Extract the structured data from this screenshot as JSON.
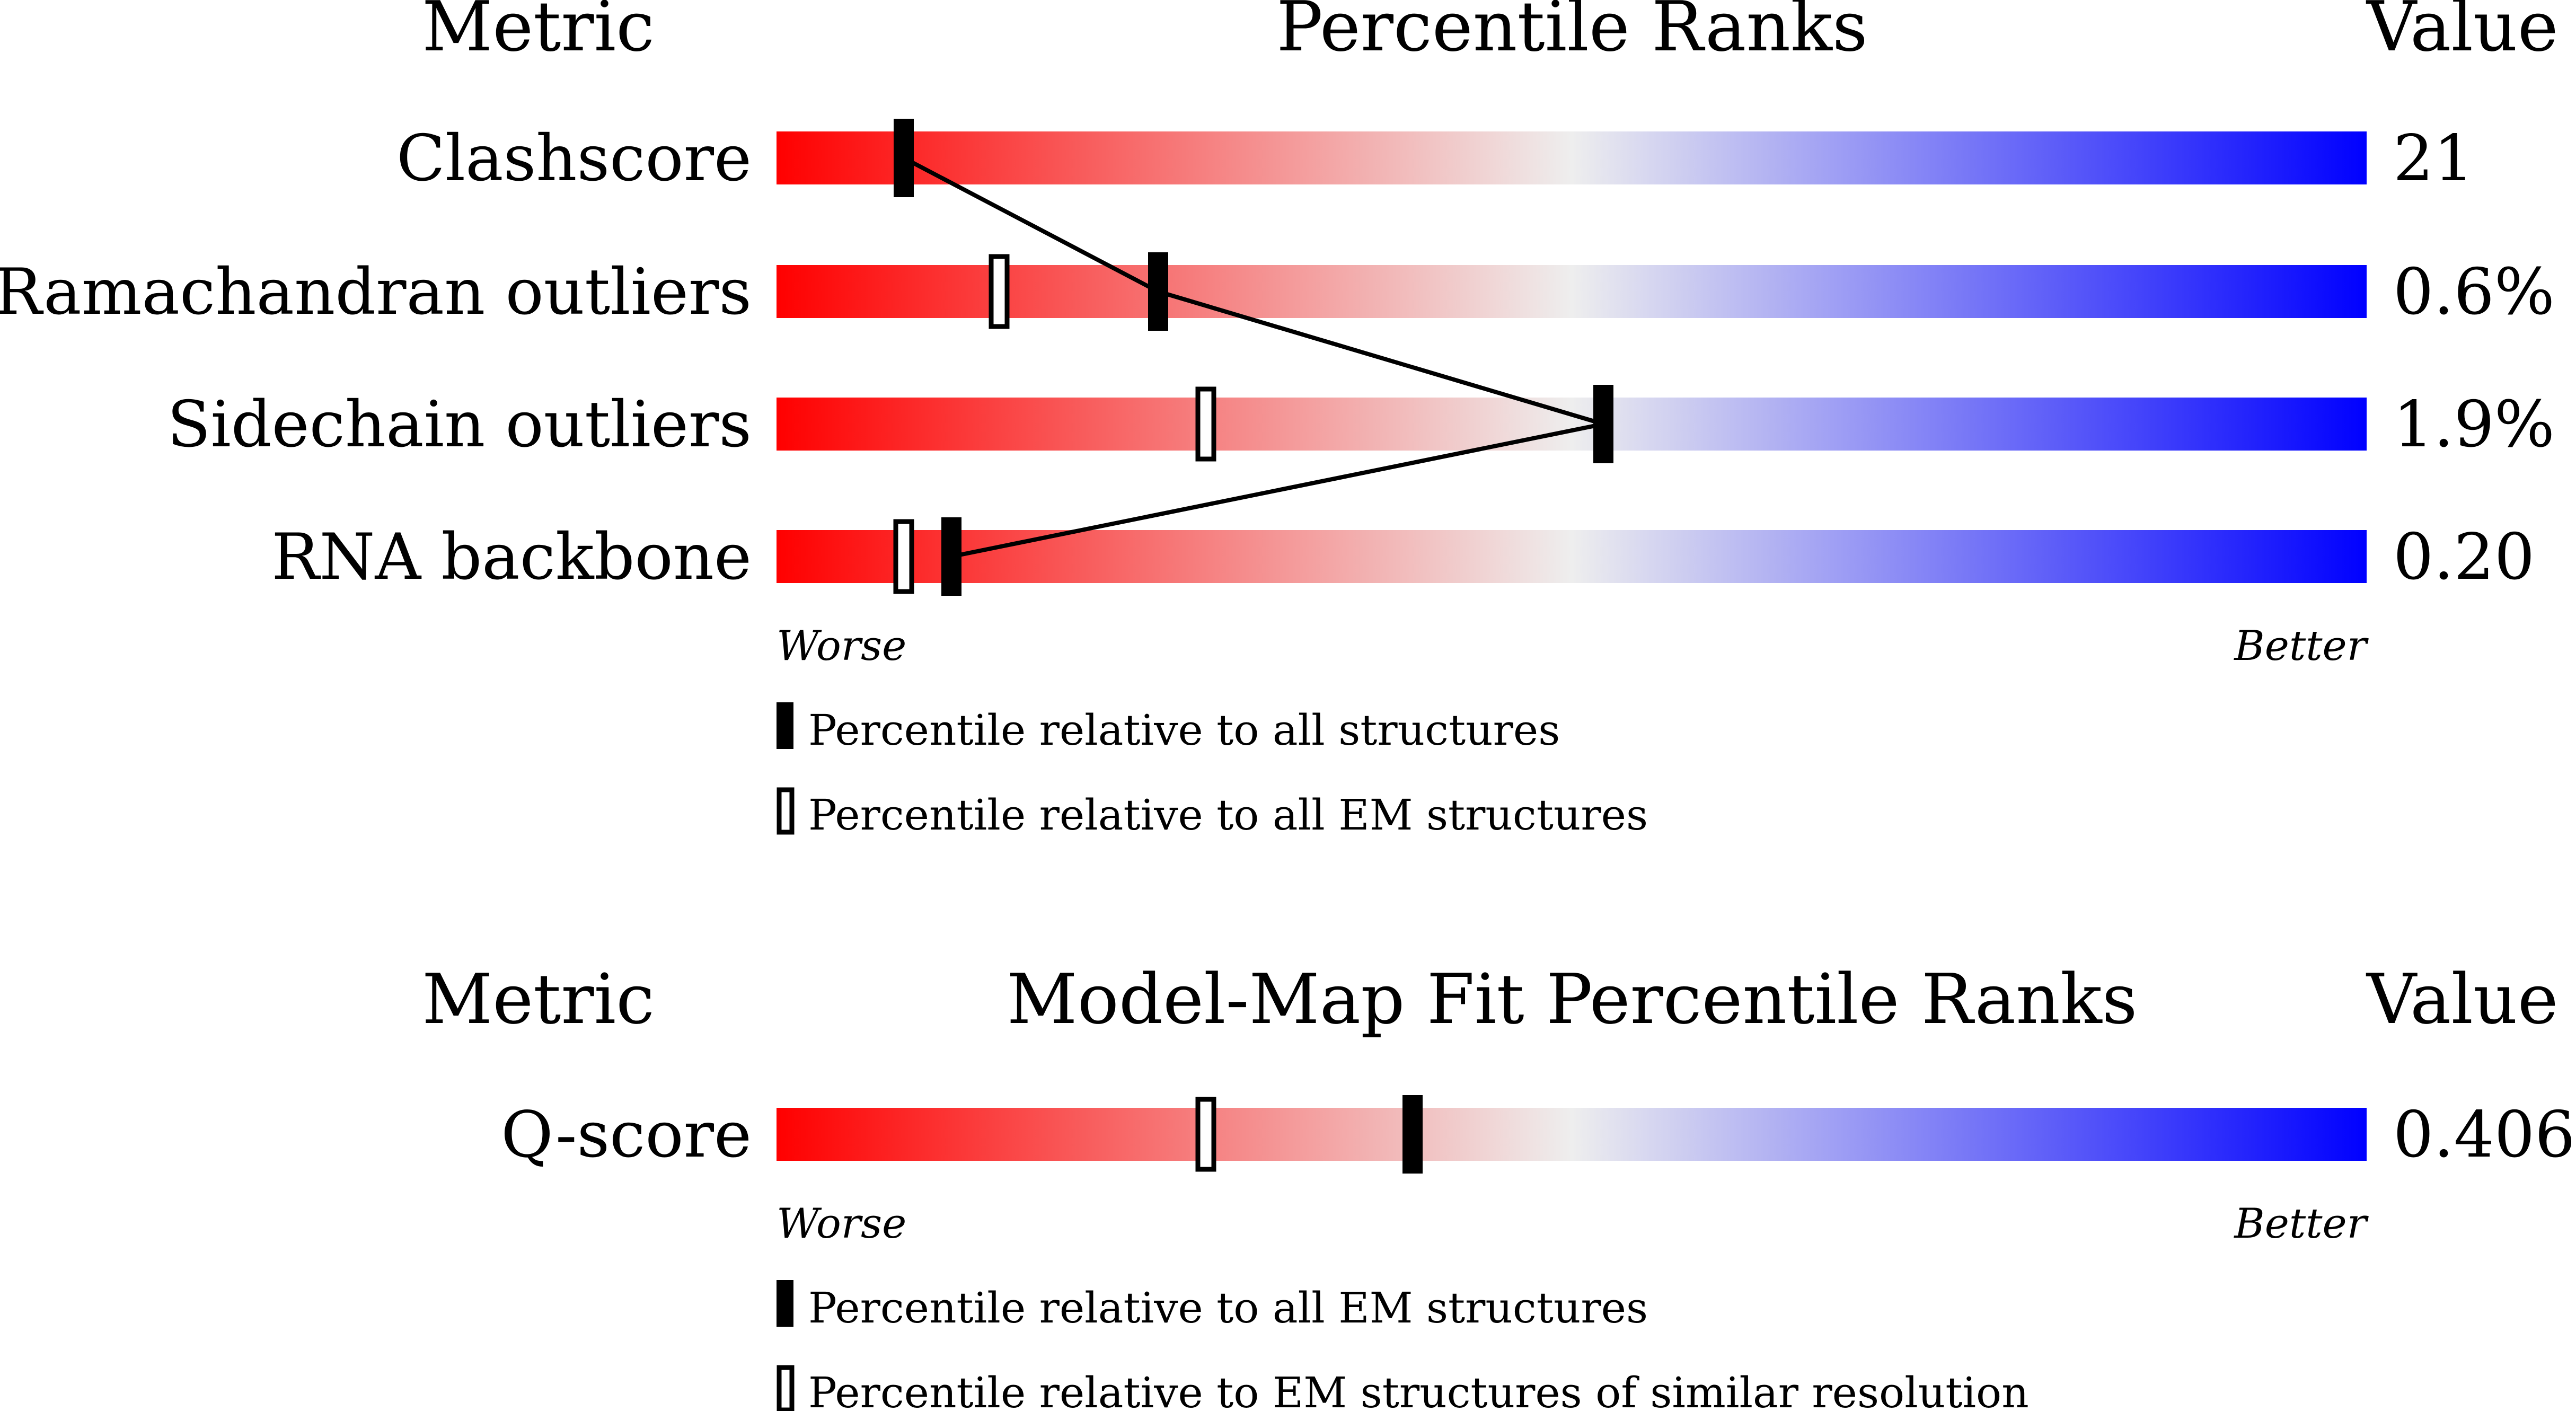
{
  "chart_data": [
    {
      "type": "bar",
      "title": "Percentile Ranks",
      "metric_header": "Metric",
      "value_header": "Value",
      "xlim": [
        0,
        100
      ],
      "axis_left_label": "Worse",
      "axis_right_label": "Better",
      "gradient_colors": [
        "#ff0000",
        "#eeeeee",
        "#0000ff"
      ],
      "connect_markers": "all",
      "rows": [
        {
          "metric": "Clashscore",
          "value": "21",
          "percentile_all": 8,
          "percentile_secondary": null
        },
        {
          "metric": "Ramachandran outliers",
          "value": "0.6%",
          "percentile_all": 24,
          "percentile_secondary": 14
        },
        {
          "metric": "Sidechain outliers",
          "value": "1.9%",
          "percentile_all": 52,
          "percentile_secondary": 27
        },
        {
          "metric": "RNA backbone",
          "value": "0.20",
          "percentile_all": 11,
          "percentile_secondary": 8
        }
      ],
      "legend": {
        "filled": "Percentile relative to all structures",
        "hollow": "Percentile relative to all EM structures"
      }
    },
    {
      "type": "bar",
      "title": "Model-Map Fit Percentile Ranks",
      "metric_header": "Metric",
      "value_header": "Value",
      "xlim": [
        0,
        100
      ],
      "axis_left_label": "Worse",
      "axis_right_label": "Better",
      "gradient_colors": [
        "#ff0000",
        "#eeeeee",
        "#0000ff"
      ],
      "connect_markers": "none",
      "rows": [
        {
          "metric": "Q-score",
          "value": "0.406",
          "percentile_all": 40,
          "percentile_secondary": 27
        }
      ],
      "legend": {
        "filled": "Percentile relative to all EM structures",
        "hollow": "Percentile relative to EM structures of similar resolution"
      }
    }
  ]
}
